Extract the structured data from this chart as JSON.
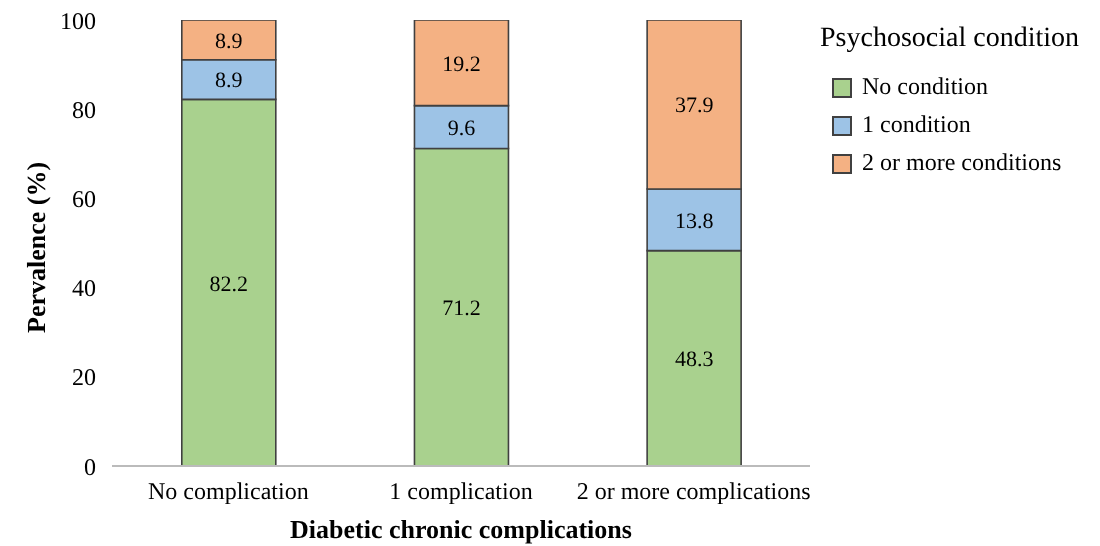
{
  "chart_data": {
    "type": "bar",
    "stacked": true,
    "xlabel": "Diabetic chronic complications",
    "ylabel": "Pervalence (%)",
    "legend_title": "Psychosocial condition",
    "legend": "right",
    "grid": false,
    "data_labels": true,
    "categories": [
      "No complication",
      "1 complication",
      "2 or more complications"
    ],
    "ylim": [
      0,
      100
    ],
    "yticks": [
      0,
      20,
      40,
      60,
      80,
      100
    ],
    "series": [
      {
        "name": "No condition",
        "color": "#a9d18e",
        "values": [
          82.2,
          71.2,
          48.3
        ]
      },
      {
        "name": "1 condition",
        "color": "#9dc3e6",
        "values": [
          8.9,
          9.6,
          13.8
        ]
      },
      {
        "name": "2 or more conditions",
        "color": "#f4b183",
        "values": [
          8.9,
          19.2,
          37.9
        ]
      }
    ]
  }
}
